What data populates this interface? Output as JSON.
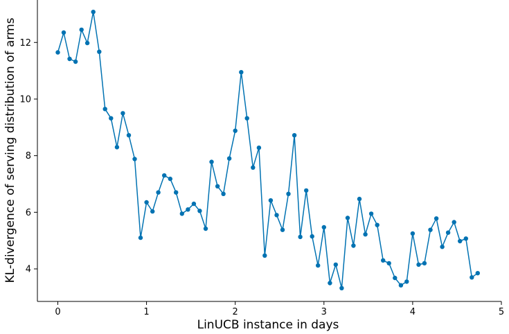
{
  "chart_data": {
    "type": "line",
    "title": "",
    "xlabel": "LinUCB instance in days",
    "ylabel": "KL-divergence of serving distribution of arms",
    "xlim": [
      -0.23,
      5.0
    ],
    "ylim": [
      2.85,
      13.5
    ],
    "xticks": [
      0,
      1,
      2,
      3,
      4,
      5
    ],
    "yticks": [
      4,
      6,
      8,
      10,
      12
    ],
    "grid": false,
    "line_color": "#0072b2",
    "series": [
      {
        "x": [
          0.0,
          0.067,
          0.133,
          0.2,
          0.267,
          0.333,
          0.4,
          0.467,
          0.533,
          0.6,
          0.667,
          0.733,
          0.8,
          0.867,
          0.933,
          1.0,
          1.067,
          1.133,
          1.2,
          1.267,
          1.333,
          1.4,
          1.467,
          1.533,
          1.6,
          1.667,
          1.733,
          1.8,
          1.867,
          1.933,
          2.0,
          2.067,
          2.133,
          2.2,
          2.267,
          2.333,
          2.4,
          2.467,
          2.533,
          2.6,
          2.667,
          2.733,
          2.8,
          2.867,
          2.933,
          3.0,
          3.067,
          3.133,
          3.2,
          3.267,
          3.333,
          3.4,
          3.467,
          3.533,
          3.6,
          3.667,
          3.733,
          3.8,
          3.867,
          3.933,
          4.0,
          4.067,
          4.133,
          4.2,
          4.267,
          4.333,
          4.4,
          4.467,
          4.533,
          4.6,
          4.667,
          4.733
        ],
        "y": [
          11.65,
          12.35,
          11.42,
          11.32,
          12.45,
          11.98,
          13.08,
          11.67,
          9.65,
          9.32,
          8.3,
          9.5,
          8.72,
          7.88,
          5.1,
          6.35,
          6.03,
          6.7,
          7.3,
          7.18,
          6.7,
          5.95,
          6.1,
          6.3,
          6.05,
          5.42,
          7.78,
          6.92,
          6.65,
          7.9,
          8.88,
          10.95,
          9.32,
          7.58,
          8.28,
          4.47,
          6.42,
          5.9,
          5.38,
          6.65,
          8.72,
          5.13,
          6.77,
          5.15,
          4.12,
          5.47,
          3.5,
          4.15,
          3.32,
          5.8,
          4.82,
          6.47,
          5.22,
          5.95,
          5.55,
          4.3,
          4.2,
          3.68,
          3.42,
          3.55,
          5.25,
          4.15,
          4.2,
          5.38,
          5.78,
          4.78,
          5.28,
          5.65,
          4.98,
          5.07,
          3.7,
          3.85
        ]
      }
    ]
  }
}
